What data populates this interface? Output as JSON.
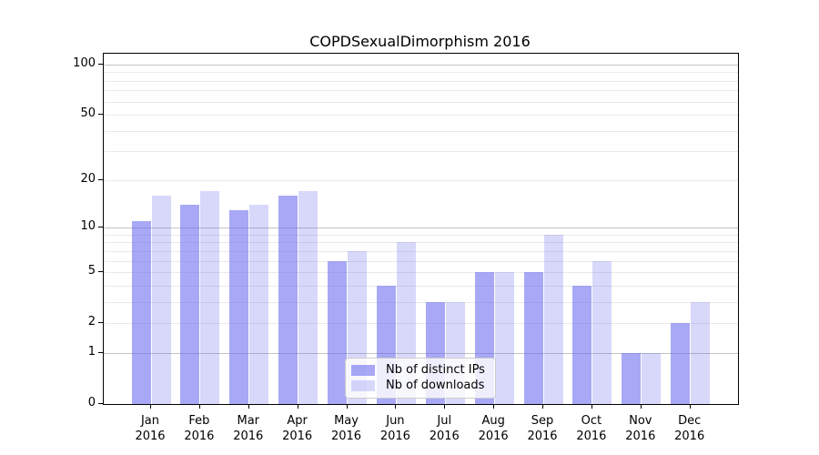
{
  "chart_data": {
    "type": "bar",
    "title": "COPDSexualDimorphism 2016",
    "months": [
      "Jan",
      "Feb",
      "Mar",
      "Apr",
      "May",
      "Jun",
      "Jul",
      "Aug",
      "Sep",
      "Oct",
      "Nov",
      "Dec"
    ],
    "year_label": "2016",
    "categories": [
      "Jan 2016",
      "Feb 2016",
      "Mar 2016",
      "Apr 2016",
      "May 2016",
      "Jun 2016",
      "Jul 2016",
      "Aug 2016",
      "Sep 2016",
      "Oct 2016",
      "Nov 2016",
      "Dec 2016"
    ],
    "series": [
      {
        "name": "Nb of distinct IPs",
        "color": "rgba(105,105,240,0.58)",
        "values": [
          11,
          14,
          13,
          16,
          6,
          4,
          3,
          5,
          5,
          4,
          1,
          2
        ]
      },
      {
        "name": "Nb of downloads",
        "color": "rgba(105,105,240,0.26)",
        "values": [
          16,
          17,
          14,
          17,
          7,
          8,
          3,
          5,
          9,
          6,
          1,
          3
        ]
      }
    ],
    "yscale": "log1p",
    "ylim": [
      0,
      100
    ],
    "ytick_values": [
      0,
      1,
      2,
      5,
      10,
      20,
      50,
      100
    ],
    "ytick_labels": [
      "0",
      "1",
      "2",
      "5",
      "10",
      "20",
      "50",
      "100"
    ],
    "major_grid_values": [
      1,
      10,
      100
    ],
    "minor_grid_values": [
      2,
      3,
      4,
      5,
      6,
      7,
      8,
      9,
      20,
      30,
      40,
      50,
      60,
      70,
      80,
      90
    ],
    "legend_position": "lower center",
    "colors": {
      "grid_major": "#c3c3c3",
      "grid_minor": "#e9e9e9",
      "spine": "#000000",
      "text": "#000000",
      "background": "#ffffff"
    }
  }
}
